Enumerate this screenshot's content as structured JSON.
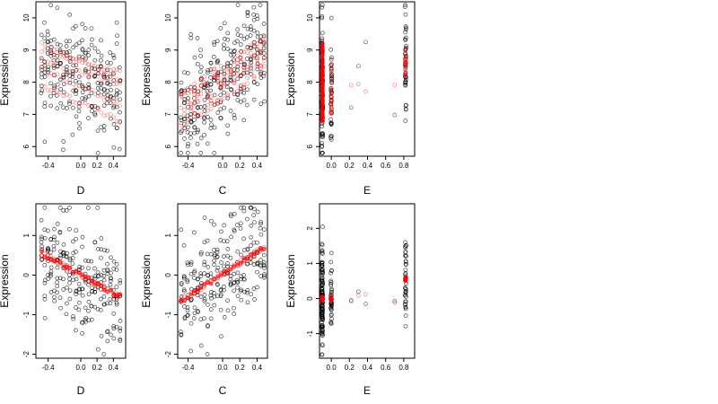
{
  "chart_data": [
    {
      "type": "scatter",
      "xlabel": "D",
      "ylabel": "Expression",
      "xlim": [
        -0.55,
        0.55
      ],
      "ylim": [
        5.7,
        10.5
      ],
      "xticks": [
        -0.4,
        0.0,
        0.2,
        0.4
      ],
      "xtick_labels": [
        "-0.4",
        "0.0",
        "0.2",
        "0.4"
      ],
      "yticks": [
        6,
        7,
        8,
        9,
        10
      ],
      "ytick_labels": [
        "6",
        "7",
        "8",
        "9",
        "10"
      ],
      "colors": {
        "observed": "#000000",
        "fitted": "#ff0000"
      },
      "trend": {
        "kind": "multi",
        "x0": -0.48,
        "x1": 0.48,
        "lines": [
          [
            9.2,
            8.1
          ],
          [
            8.7,
            7.9
          ],
          [
            7.9,
            6.8
          ],
          [
            8.4,
            7.3
          ],
          [
            9.0,
            8.3
          ]
        ]
      },
      "spread": 0.9
    },
    {
      "type": "scatter",
      "xlabel": "C",
      "ylabel": "Expression",
      "xlim": [
        -0.52,
        0.52
      ],
      "ylim": [
        5.7,
        10.5
      ],
      "xticks": [
        -0.4,
        0.0,
        0.2,
        0.4
      ],
      "xtick_labels": [
        "-0.4",
        "0.0",
        "0.2",
        "0.4"
      ],
      "yticks": [
        6,
        7,
        8,
        9,
        10
      ],
      "ytick_labels": [
        "6",
        "7",
        "8",
        "9",
        "10"
      ],
      "colors": {
        "observed": "#000000",
        "fitted": "#ff0000"
      },
      "trend": {
        "kind": "band",
        "x0": -0.48,
        "x1": 0.48,
        "y0": 7.1,
        "y1": 8.9,
        "width": 0.6
      },
      "spread": 0.8
    },
    {
      "type": "scatter",
      "xlabel": "E",
      "ylabel": "Expression",
      "xlim": [
        -0.13,
        0.92
      ],
      "ylim": [
        5.7,
        10.5
      ],
      "xticks": [
        0.0,
        0.2,
        0.4,
        0.6,
        0.8
      ],
      "xtick_labels": [
        "0.0",
        "0.2",
        "0.4",
        "0.6",
        "0.8"
      ],
      "yticks": [
        6,
        7,
        8,
        9,
        10
      ],
      "ytick_labels": [
        "6",
        "7",
        "8",
        "9",
        "10"
      ],
      "colors": {
        "observed": "#000000",
        "fitted": "#ff0000"
      },
      "trend": {
        "kind": "clusters",
        "groups": [
          [
            -0.1,
            8.0,
            1.2,
            1.1
          ],
          [
            0.0,
            7.8,
            0.8,
            0.7
          ],
          [
            0.82,
            8.6,
            0.4,
            0.9
          ]
        ]
      },
      "spread": 1.0
    },
    {
      "type": "scatter",
      "xlabel": "D",
      "ylabel": "Expression",
      "xlim": [
        -0.55,
        0.55
      ],
      "ylim": [
        -2.1,
        1.8
      ],
      "xticks": [
        -0.4,
        0.0,
        0.2,
        0.4
      ],
      "xtick_labels": [
        "-0.4",
        "0.0",
        "0.2",
        "0.4"
      ],
      "yticks": [
        -2,
        -1,
        0,
        1
      ],
      "ytick_labels": [
        "-2",
        "-1",
        "0",
        "1"
      ],
      "colors": {
        "observed": "#000000",
        "fitted": "#ff0000"
      },
      "trend": {
        "kind": "line",
        "x0": -0.48,
        "x1": 0.48,
        "y0": 0.55,
        "y1": -0.55
      },
      "spread": 0.7
    },
    {
      "type": "scatter",
      "xlabel": "C",
      "ylabel": "Expression",
      "xlim": [
        -0.52,
        0.52
      ],
      "ylim": [
        -2.1,
        1.8
      ],
      "xticks": [
        -0.4,
        0.0,
        0.2,
        0.4
      ],
      "xtick_labels": [
        "-0.4",
        "0.0",
        "0.2",
        "0.4"
      ],
      "yticks": [
        -2,
        -1,
        0,
        1
      ],
      "ytick_labels": [
        "-2",
        "-1",
        "0",
        "1"
      ],
      "colors": {
        "observed": "#000000",
        "fitted": "#ff0000"
      },
      "trend": {
        "kind": "line",
        "x0": -0.48,
        "x1": 0.48,
        "y0": -0.65,
        "y1": 0.7
      },
      "spread": 0.65
    },
    {
      "type": "scatter",
      "xlabel": "E",
      "ylabel": "Expression",
      "xlim": [
        -0.13,
        0.92
      ],
      "ylim": [
        -1.7,
        2.7
      ],
      "xticks": [
        0.0,
        0.2,
        0.4,
        0.6,
        0.8
      ],
      "xtick_labels": [
        "0.0",
        "0.2",
        "0.4",
        "0.6",
        "0.8"
      ],
      "yticks": [
        -1,
        0,
        1,
        2
      ],
      "ytick_labels": [
        "-1",
        "0",
        "1",
        "2"
      ],
      "colors": {
        "observed": "#000000",
        "fitted": "#ff0000"
      },
      "trend": {
        "kind": "clusters",
        "groups": [
          [
            -0.1,
            0.0,
            0.05,
            0.7
          ],
          [
            0.0,
            0.0,
            0.05,
            0.4
          ],
          [
            0.82,
            0.55,
            0.05,
            0.7
          ]
        ]
      },
      "spread": 0.7
    }
  ]
}
